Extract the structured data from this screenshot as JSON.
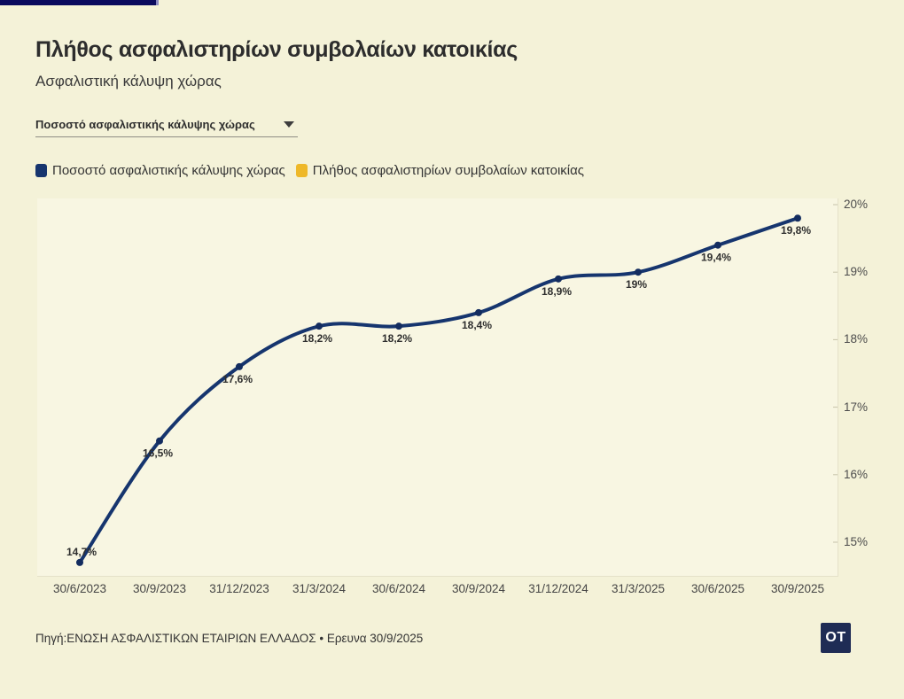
{
  "header": {
    "title": "Πλήθος ασφαλιστηρίων συμβολαίων κατοικίας",
    "subtitle": "Ασφαλιστική κάλυψη χώρας"
  },
  "dropdown": {
    "selected": "Ποσοστό ασφαλιστικής κάλυψης χώρας"
  },
  "legend": [
    {
      "label": "Ποσοστό ασφαλιστικής κάλυψης χώρας",
      "color": "#16356e"
    },
    {
      "label": "Πλήθος ασφαλιστηρίων συμβολαίων κατοικίας",
      "color": "#eeb829"
    }
  ],
  "chart_data": {
    "type": "line",
    "x": [
      "30/6/2023",
      "30/9/2023",
      "31/12/2023",
      "31/3/2024",
      "30/6/2024",
      "30/9/2024",
      "31/12/2024",
      "31/3/2025",
      "30/6/2025",
      "30/9/2025"
    ],
    "series": [
      {
        "name": "Ποσοστό ασφαλιστικής κάλυψης χώρας",
        "values": [
          14.7,
          16.5,
          17.6,
          18.2,
          18.2,
          18.4,
          18.9,
          19.0,
          19.4,
          19.8
        ],
        "point_labels": [
          "14,7%",
          "16,5%",
          "17,6%",
          "18,2%",
          "18,2%",
          "18,4%",
          "18,9%",
          "19%",
          "19,4%",
          "19,8%"
        ],
        "color": "#16356e"
      }
    ],
    "hidden_series_in_legend": "Πλήθος ασφαλιστηρίων συμβολαίων κατοικίας",
    "ylabel": "",
    "xlabel": "",
    "ylim": [
      14.5,
      20.1
    ],
    "yticks": [
      {
        "value": 15,
        "label": "15%"
      },
      {
        "value": 16,
        "label": "16%"
      },
      {
        "value": 17,
        "label": "17%"
      },
      {
        "value": 18,
        "label": "18%"
      },
      {
        "value": 19,
        "label": "19%"
      },
      {
        "value": 20,
        "label": "20%"
      }
    ],
    "grid": false,
    "legend_position": "top"
  },
  "footer": {
    "source": "Πηγή:ΕΝΩΣΗ ΑΣΦΑΛΙΣΤΙΚΩΝ ΕΤΑΙΡΙΩΝ ΕΛΛΑΔΟΣ • Ερευνα 30/9/2025"
  },
  "logo": {
    "text": "OT"
  },
  "colors": {
    "page_bg": "#f4f2d8",
    "plot_bg": "#f8f6e2",
    "line": "#16356e",
    "marker": "#132c5f",
    "yellow": "#eeb829",
    "topbar": "#0a0a5e",
    "topbar_tip": "#8a8ac0",
    "logo_bg": "#1f2c55"
  }
}
